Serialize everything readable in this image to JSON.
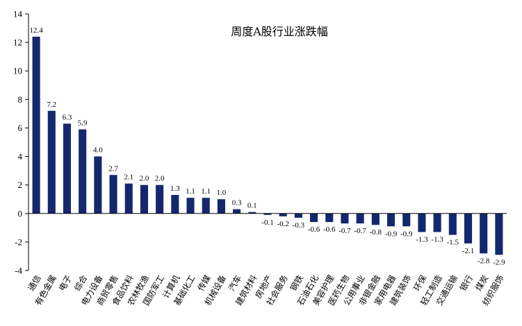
{
  "chart_data": {
    "type": "bar",
    "title": "周度A股行业涨跌幅",
    "xlabel": "",
    "ylabel": "",
    "ylim": [
      -4,
      14
    ],
    "yticks": [
      -4,
      -2,
      0,
      2,
      4,
      6,
      8,
      10,
      12,
      14
    ],
    "grid": false,
    "legend": "none",
    "bar_color": "#14286e",
    "categories": [
      "通信",
      "有色金属",
      "电子",
      "综合",
      "电力设备",
      "商贸零售",
      "食品饮料",
      "农林牧渔",
      "国防军工",
      "计算机",
      "基础化工",
      "传媒",
      "机械设备",
      "汽车",
      "建筑材料",
      "房地产",
      "社会服务",
      "钢铁",
      "石油石化",
      "美容护理",
      "医药生物",
      "公用事业",
      "非银金融",
      "家用电器",
      "建筑装饰",
      "环保",
      "轻工制造",
      "交通运输",
      "银行",
      "煤炭",
      "纺织服饰"
    ],
    "values": [
      12.4,
      7.2,
      6.3,
      5.9,
      4.0,
      2.7,
      2.1,
      2.0,
      2.0,
      1.3,
      1.1,
      1.1,
      1.0,
      0.3,
      0.1,
      -0.1,
      -0.2,
      -0.3,
      -0.6,
      -0.6,
      -0.7,
      -0.7,
      -0.8,
      -0.9,
      -0.9,
      -1.3,
      -1.3,
      -1.5,
      -2.1,
      -2.8,
      -2.9
    ],
    "value_labels": [
      "12.4",
      "7.2",
      "6.3",
      "5.9",
      "4.0",
      "2.7",
      "2.1",
      "2.0",
      "2.0",
      "1.3",
      "1.1",
      "1.1",
      "1.0",
      "0.3",
      "0.1",
      "-0.1",
      "-0.2",
      "-0.3",
      "-0.6",
      "-0.6",
      "-0.7",
      "-0.7",
      "-0.8",
      "-0.9",
      "-0.9",
      "-1.3",
      "-1.3",
      "-1.5",
      "-2.1",
      "-2.8",
      "-2.9"
    ]
  }
}
